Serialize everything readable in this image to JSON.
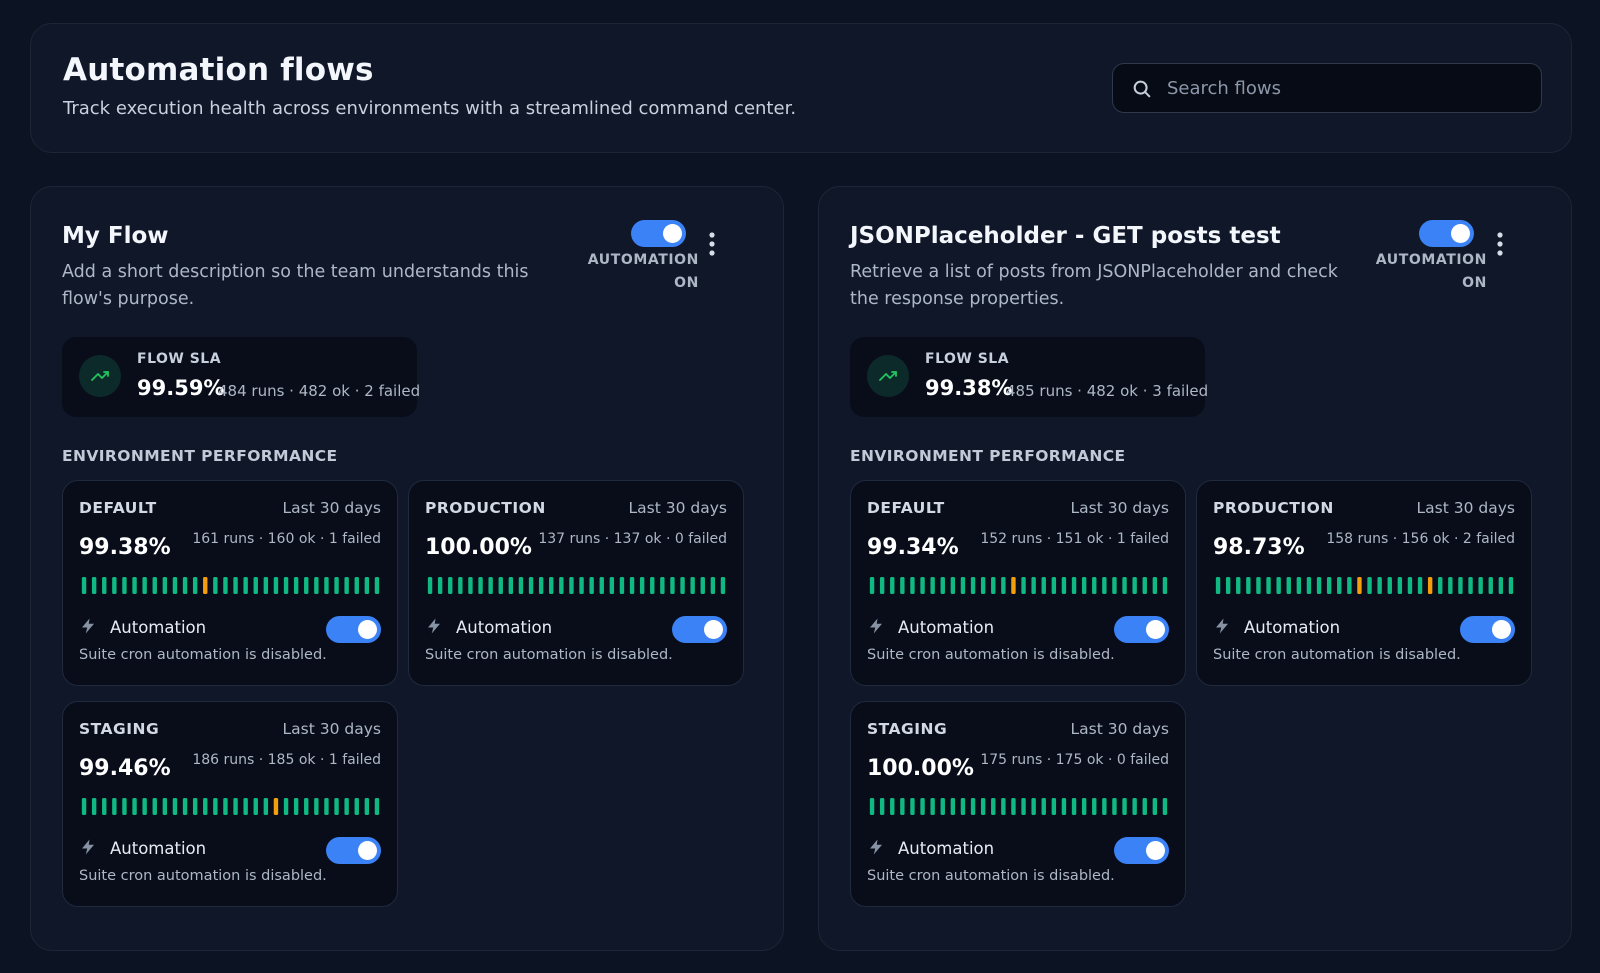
{
  "header": {
    "title": "Automation flows",
    "subtitle": "Track execution health across environments with a streamlined command center.",
    "search_placeholder": "Search flows"
  },
  "flows": [
    {
      "title": "My Flow",
      "description": "Add a short description so the team understands this flow's purpose.",
      "automation_label_line1": "AUTOMATION",
      "automation_label_line2": "ON",
      "automation_on": true,
      "sla_label": "FLOW SLA",
      "sla_value": "99.59%",
      "sla_detail": "484 runs · 482 ok · 2 failed",
      "section_label": "ENVIRONMENT PERFORMANCE",
      "environments": [
        {
          "name": "DEFAULT",
          "period": "Last 30 days",
          "value": "99.38%",
          "detail": "161 runs · 160 ok · 1 failed",
          "failed_bar_index": 12,
          "automation_label": "Automation",
          "automation_on": true,
          "note": "Suite cron automation is disabled."
        },
        {
          "name": "PRODUCTION",
          "period": "Last 30 days",
          "value": "100.00%",
          "detail": "137 runs · 137 ok · 0 failed",
          "failed_bar_index": -1,
          "automation_label": "Automation",
          "automation_on": true,
          "note": "Suite cron automation is disabled."
        },
        {
          "name": "STAGING",
          "period": "Last 30 days",
          "value": "99.46%",
          "detail": "186 runs · 185 ok · 1 failed",
          "failed_bar_index": 19,
          "automation_label": "Automation",
          "automation_on": true,
          "note": "Suite cron automation is disabled."
        }
      ]
    },
    {
      "title": "JSONPlaceholder - GET posts test",
      "description": "Retrieve a list of posts from JSONPlaceholder and check the response properties.",
      "automation_label_line1": "AUTOMATION",
      "automation_label_line2": "ON",
      "automation_on": true,
      "sla_label": "FLOW SLA",
      "sla_value": "99.38%",
      "sla_detail": "485 runs · 482 ok · 3 failed",
      "section_label": "ENVIRONMENT PERFORMANCE",
      "environments": [
        {
          "name": "DEFAULT",
          "period": "Last 30 days",
          "value": "99.34%",
          "detail": "152 runs · 151 ok · 1 failed",
          "failed_bar_index": 14,
          "automation_label": "Automation",
          "automation_on": true,
          "note": "Suite cron automation is disabled."
        },
        {
          "name": "PRODUCTION",
          "period": "Last 30 days",
          "value": "98.73%",
          "detail": "158 runs · 156 ok · 2 failed",
          "failed_bar_index": 14,
          "failed_bar_index_2": 21,
          "automation_label": "Automation",
          "automation_on": true,
          "note": "Suite cron automation is disabled."
        },
        {
          "name": "STAGING",
          "period": "Last 30 days",
          "value": "100.00%",
          "detail": "175 runs · 175 ok · 0 failed",
          "failed_bar_index": -1,
          "automation_label": "Automation",
          "automation_on": true,
          "note": "Suite cron automation is disabled."
        }
      ]
    }
  ],
  "colors": {
    "accent": "#3b82f6",
    "bar_ok": "#10b981",
    "bar_failed": "#f59e0b",
    "sla_icon": "#22c55e"
  },
  "icons": {
    "search": "search-icon",
    "more": "more-vertical-icon",
    "trend": "trending-up-icon",
    "bolt": "bolt-icon"
  }
}
